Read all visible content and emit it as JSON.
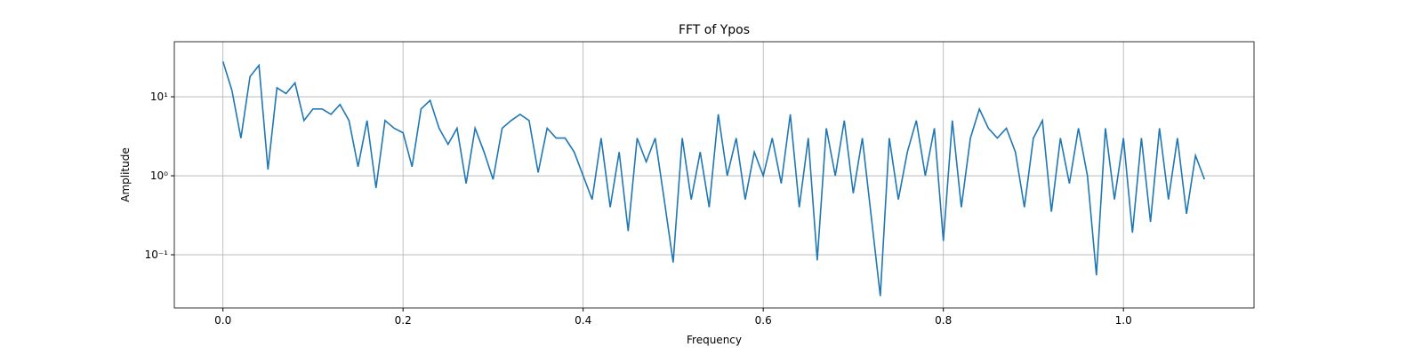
{
  "chart_data": {
    "type": "line",
    "title": "FFT of Ypos",
    "x_label": "Frequency",
    "y_label": "Amplitude",
    "log_y": true,
    "grid": true,
    "xlim": [
      -0.054,
      1.145
    ],
    "ylim": [
      0.0212,
      49.8
    ],
    "xticks": [
      {
        "value": 0,
        "label": "0.0"
      },
      0.2,
      0.4,
      0.6,
      0.8,
      {
        "value": 1,
        "label": "1.0"
      }
    ],
    "yticks": [
      {
        "value": 0.1,
        "label": "10⁻¹"
      },
      {
        "value": 1,
        "label": "10⁰"
      },
      {
        "value": 10,
        "label": "10¹"
      }
    ],
    "series": [
      {
        "name": "Ypos",
        "color": "#1f77b4",
        "x": [
          0,
          0.01,
          0.02,
          0.03,
          0.04,
          0.05,
          0.06,
          0.07,
          0.08,
          0.09,
          0.1,
          0.11,
          0.12,
          0.13,
          0.14,
          0.15,
          0.16,
          0.17,
          0.18,
          0.19,
          0.2,
          0.21,
          0.22,
          0.23,
          0.24,
          0.25,
          0.26,
          0.27,
          0.28,
          0.29,
          0.3,
          0.31,
          0.32,
          0.33,
          0.34,
          0.35,
          0.36,
          0.37,
          0.38,
          0.39,
          0.4,
          0.41,
          0.42,
          0.43,
          0.44,
          0.45,
          0.46,
          0.47,
          0.48,
          0.49,
          0.5,
          0.51,
          0.52,
          0.53,
          0.54,
          0.55,
          0.56,
          0.57,
          0.58,
          0.59,
          0.6,
          0.61,
          0.62,
          0.63,
          0.64,
          0.65,
          0.66,
          0.67,
          0.68,
          0.69,
          0.7,
          0.71,
          0.72,
          0.73,
          0.74,
          0.75,
          0.76,
          0.77,
          0.78,
          0.79,
          0.8,
          0.81,
          0.82,
          0.83,
          0.84,
          0.85,
          0.86,
          0.87,
          0.88,
          0.89,
          0.9,
          0.91,
          0.92,
          0.93,
          0.94,
          0.95,
          0.96,
          0.97,
          0.98,
          0.99,
          1,
          1.01,
          1.02,
          1.03,
          1.04,
          1.05,
          1.06,
          1.07,
          1.08,
          1.09
        ],
        "values": [
          28,
          12,
          3,
          18,
          25,
          1.2,
          13,
          11,
          15,
          5,
          7,
          7,
          6,
          8,
          5,
          1.3,
          5,
          0.7,
          5,
          4,
          3.5,
          1.3,
          7,
          9,
          4,
          2.5,
          4,
          0.8,
          4,
          2,
          0.9,
          4,
          5,
          6,
          5,
          1.1,
          4,
          3,
          3,
          2,
          1,
          0.5,
          3,
          0.4,
          2,
          0.2,
          3,
          1.5,
          3,
          0.5,
          0.08,
          3,
          0.5,
          2,
          0.4,
          6,
          1,
          3,
          0.5,
          2,
          1,
          3,
          0.8,
          6,
          0.4,
          3,
          0.085,
          4,
          1,
          5,
          0.6,
          3,
          0.3,
          0.03,
          3,
          0.5,
          2,
          5,
          1,
          4,
          0.15,
          5,
          0.4,
          3,
          7,
          4,
          3,
          4,
          2,
          0.4,
          3,
          5,
          0.35,
          3,
          0.8,
          4,
          1,
          0.055,
          4,
          0.5,
          3,
          0.19,
          3,
          0.26,
          4,
          0.5,
          3,
          0.33,
          1.8,
          0.9
        ]
      }
    ]
  }
}
